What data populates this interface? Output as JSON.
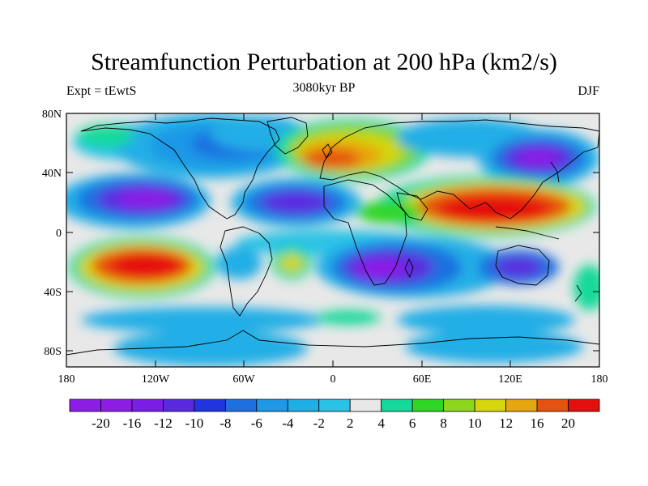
{
  "title": "Streamfunction Perturbation at 200 hPa (km2/s)",
  "subtitle_left": "Expt = tEwtS",
  "subtitle_center": "3080kyr BP",
  "subtitle_right": "DJF",
  "y_tick_labels": [
    "80N",
    "40N",
    "0",
    "40S",
    "80S"
  ],
  "x_tick_labels": [
    "180",
    "120W",
    "60W",
    "0",
    "60E",
    "120E",
    "180"
  ],
  "colorbar": {
    "labels": [
      "-20",
      "-16",
      "-12",
      "-10",
      "-8",
      "-6",
      "-4",
      "-2",
      "2",
      "4",
      "6",
      "8",
      "10",
      "12",
      "16",
      "20"
    ],
    "colors": [
      "#8c1ee6",
      "#7a1ee6",
      "#5a2ae0",
      "#2035e0",
      "#1f6fe0",
      "#1f98e6",
      "#20aee6",
      "#2ac3e6",
      "#e8e8e8",
      "#14d99a",
      "#2fd626",
      "#8ed61e",
      "#d6d60f",
      "#e6a60f",
      "#e6520f",
      "#e60f0f"
    ]
  },
  "map_background": "#e8e8e8"
}
